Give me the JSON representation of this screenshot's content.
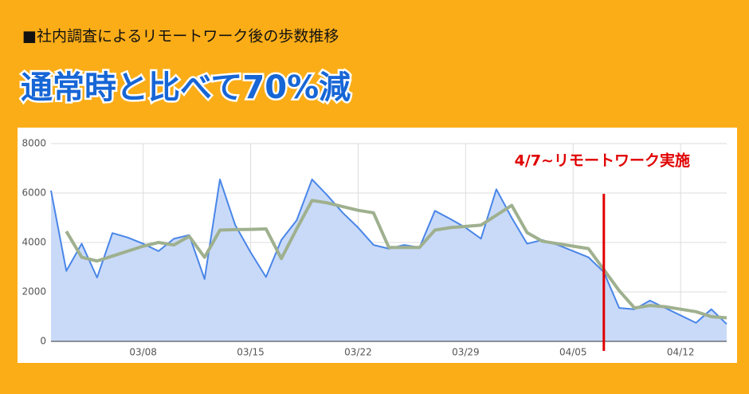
{
  "chart_data": {
    "type": "area",
    "subtitle": "■社内調査によるリモートワーク後の歩数推移",
    "title": "通常時と比べて70%減",
    "categories": [
      null,
      null,
      null,
      null,
      null,
      null,
      "03/08",
      null,
      null,
      null,
      null,
      null,
      null,
      "03/15",
      null,
      null,
      null,
      null,
      null,
      null,
      "03/22",
      null,
      null,
      null,
      null,
      null,
      null,
      "03/29",
      null,
      null,
      null,
      null,
      null,
      null,
      "04/05",
      null,
      null,
      null,
      null,
      null,
      null,
      "04/12",
      null,
      null,
      null
    ],
    "series": [
      {
        "color": "#4a86e8",
        "fill": "#c9daf8",
        "values": [
          6100,
          2850,
          3950,
          2580,
          4380,
          4200,
          3950,
          3650,
          4150,
          4300,
          2520,
          6550,
          4700,
          3600,
          2600,
          4100,
          4900,
          6550,
          5900,
          5200,
          4600,
          3900,
          3750,
          3900,
          3800,
          5280,
          4950,
          4600,
          4150,
          6150,
          5000,
          3950,
          4100,
          3900,
          3650,
          3400,
          2800,
          1350,
          1300,
          1650,
          1350,
          1050,
          750,
          1300,
          700
        ]
      },
      {
        "color": "#9fb08f",
        "values": [
          null,
          4450,
          3400,
          3250,
          3450,
          3650,
          3850,
          4000,
          3900,
          4250,
          3400,
          4500,
          4520,
          4530,
          4550,
          3350,
          4550,
          5700,
          5600,
          5450,
          5300,
          5200,
          3800,
          3800,
          3800,
          4500,
          4600,
          4650,
          4700,
          5100,
          5500,
          4400,
          4050,
          3950,
          3850,
          3750,
          2900,
          2050,
          1350,
          1450,
          1400,
          1300,
          1200,
          1000,
          950
        ]
      }
    ],
    "ylim": [
      0,
      8000
    ],
    "yticks": [
      0,
      2000,
      4000,
      6000,
      8000
    ],
    "grid": true,
    "event": {
      "label": "4/7~リモートワーク実施",
      "at": 36,
      "color": "#e00000"
    }
  }
}
